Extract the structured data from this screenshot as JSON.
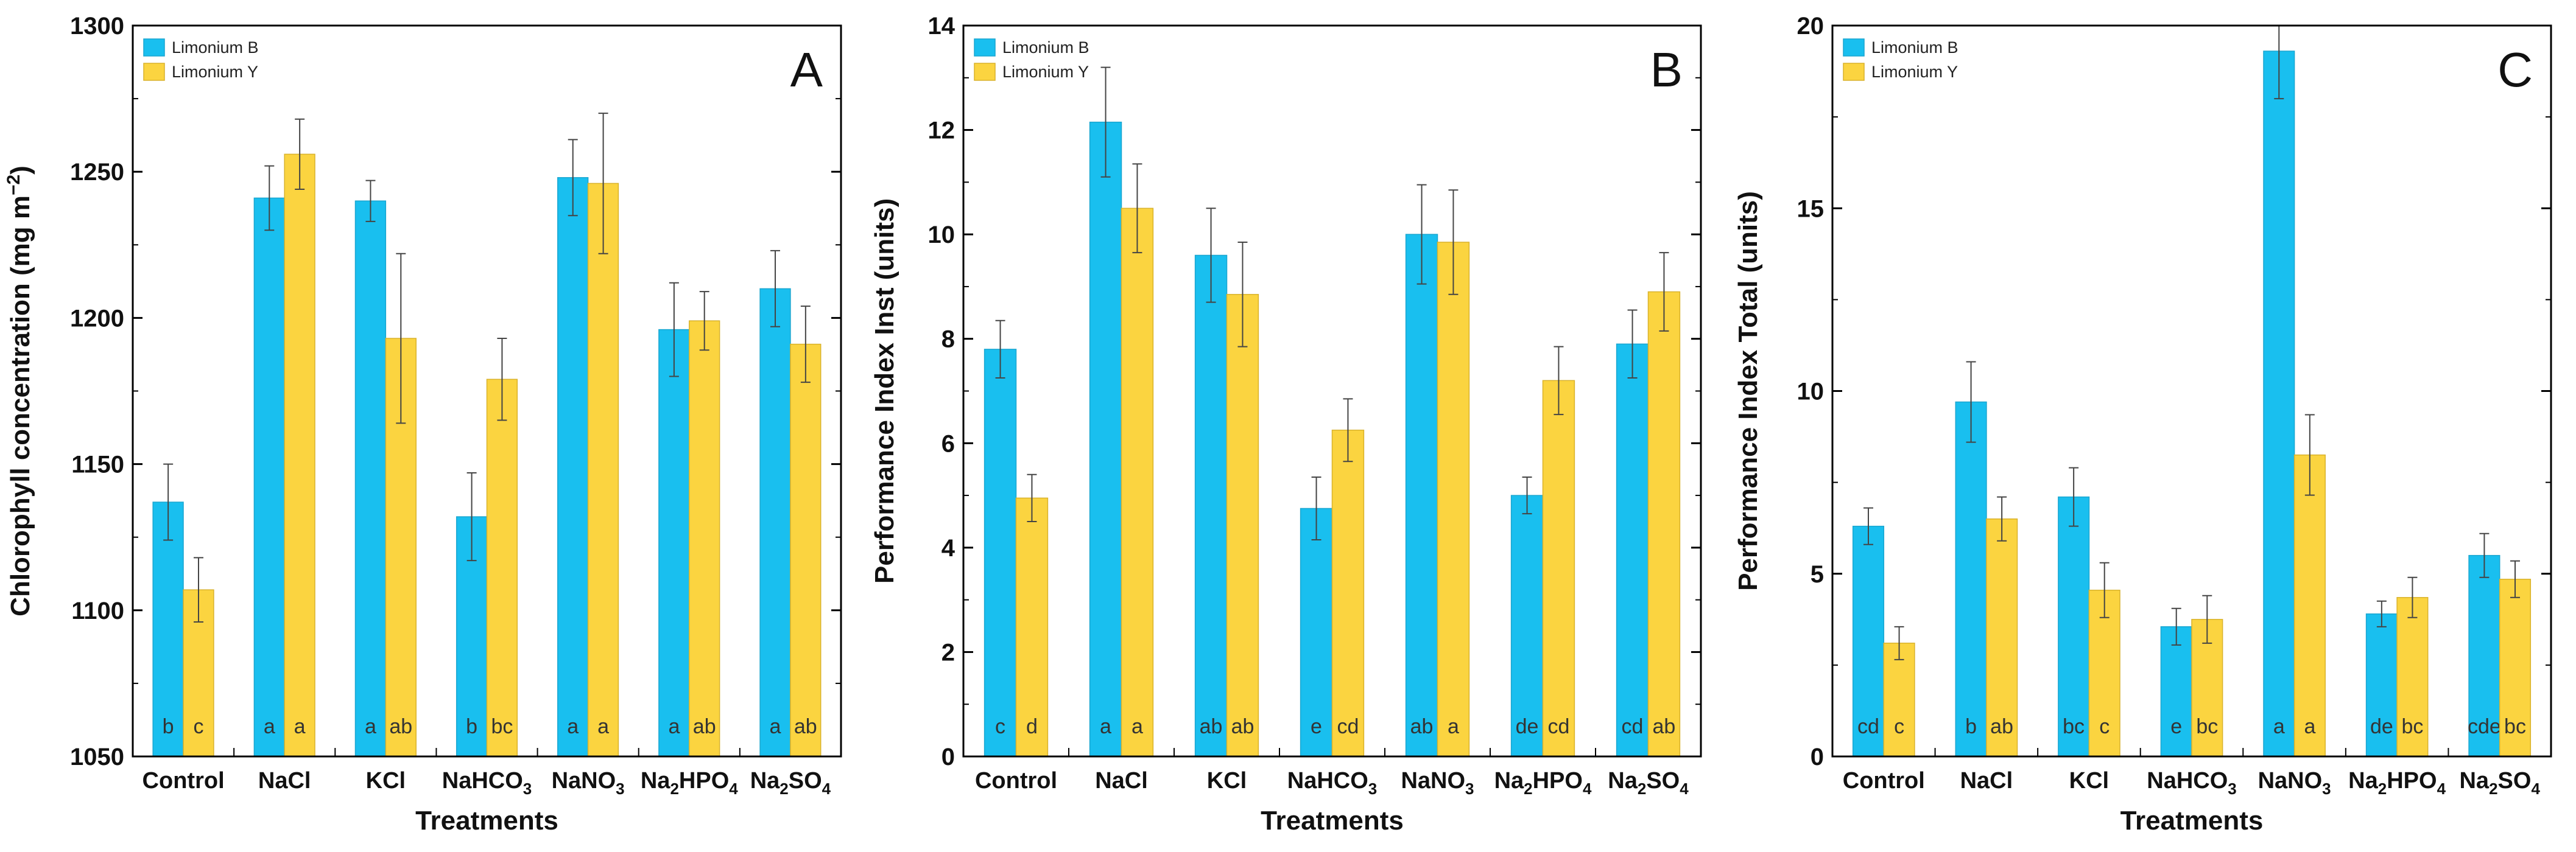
{
  "colors": {
    "series_b": "#19BFEF",
    "series_y": "#FBD440",
    "frame": "#000000",
    "error": "#444444"
  },
  "chart_data": [
    {
      "type": "bar",
      "panel_label": "A",
      "title": "",
      "categories": [
        "Control",
        "NaCl",
        "KCl",
        "NaHCO3",
        "NaNO3",
        "Na2HPO4",
        "Na2SO4"
      ],
      "category_labels": [
        {
          "main": "Control",
          "sub": "",
          "tail": ""
        },
        {
          "main": "NaCl",
          "sub": "",
          "tail": ""
        },
        {
          "main": "KCl",
          "sub": "",
          "tail": ""
        },
        {
          "main": "NaHCO",
          "sub": "3",
          "tail": ""
        },
        {
          "main": "NaNO",
          "sub": "3",
          "tail": ""
        },
        {
          "main": "Na",
          "sub": "2",
          "tail": "HPO",
          "sub2": "4"
        },
        {
          "main": "Na",
          "sub": "2",
          "tail": "SO",
          "sub2": "4"
        }
      ],
      "xlabel": "Treatments",
      "ylabel": "Chlorophyll concentration (mg m",
      "ylabel_sup": "−2",
      "ylabel_close": ")",
      "ylim": [
        1050,
        1300
      ],
      "yticks": [
        1050,
        1100,
        1150,
        1200,
        1250,
        1300
      ],
      "legend": [
        "Limonium B",
        "Limonium Y"
      ],
      "legend_position": "top-left",
      "series": [
        {
          "name": "Limonium B",
          "values": [
            1137,
            1241,
            1240,
            1132,
            1248,
            1196,
            1210
          ],
          "errors": [
            13,
            11,
            7,
            15,
            13,
            16,
            13
          ],
          "letters": [
            "b",
            "a",
            "a",
            "b",
            "a",
            "a",
            "a"
          ]
        },
        {
          "name": "Limonium Y",
          "values": [
            1107,
            1256,
            1193,
            1179,
            1246,
            1199,
            1191
          ],
          "errors": [
            11,
            12,
            29,
            14,
            24,
            10,
            13
          ],
          "letters": [
            "c",
            "a",
            "ab",
            "bc",
            "a",
            "ab",
            "ab"
          ]
        }
      ]
    },
    {
      "type": "bar",
      "panel_label": "B",
      "title": "",
      "categories": [
        "Control",
        "NaCl",
        "KCl",
        "NaHCO3",
        "NaNO3",
        "Na2HPO4",
        "Na2SO4"
      ],
      "category_labels": [
        {
          "main": "Control",
          "sub": "",
          "tail": ""
        },
        {
          "main": "NaCl",
          "sub": "",
          "tail": ""
        },
        {
          "main": "KCl",
          "sub": "",
          "tail": ""
        },
        {
          "main": "NaHCO",
          "sub": "3",
          "tail": ""
        },
        {
          "main": "NaNO",
          "sub": "3",
          "tail": ""
        },
        {
          "main": "Na",
          "sub": "2",
          "tail": "HPO",
          "sub2": "4"
        },
        {
          "main": "Na",
          "sub": "2",
          "tail": "SO",
          "sub2": "4"
        }
      ],
      "xlabel": "Treatments",
      "ylabel": "Performance Index Inst (units)",
      "ylabel_sup": "",
      "ylabel_close": "",
      "ylim": [
        0,
        14
      ],
      "yticks": [
        0,
        2,
        4,
        6,
        8,
        10,
        12,
        14
      ],
      "legend": [
        "Limonium B",
        "Limonium Y"
      ],
      "legend_position": "top-left",
      "series": [
        {
          "name": "Limonium B",
          "values": [
            7.8,
            12.15,
            9.6,
            4.75,
            10.0,
            5.0,
            7.9
          ],
          "errors": [
            0.55,
            1.05,
            0.9,
            0.6,
            0.95,
            0.35,
            0.65
          ],
          "letters": [
            "c",
            "a",
            "ab",
            "e",
            "ab",
            "de",
            "cd"
          ]
        },
        {
          "name": "Limonium Y",
          "values": [
            4.95,
            10.5,
            8.85,
            6.25,
            9.85,
            7.2,
            8.9
          ],
          "errors": [
            0.45,
            0.85,
            1.0,
            0.6,
            1.0,
            0.65,
            0.75
          ],
          "letters": [
            "d",
            "a",
            "ab",
            "cd",
            "a",
            "cd",
            "ab"
          ]
        }
      ]
    },
    {
      "type": "bar",
      "panel_label": "C",
      "title": "",
      "categories": [
        "Control",
        "NaCl",
        "KCl",
        "NaHCO3",
        "NaNO3",
        "Na2HPO4",
        "Na2SO4"
      ],
      "category_labels": [
        {
          "main": "Control",
          "sub": "",
          "tail": ""
        },
        {
          "main": "NaCl",
          "sub": "",
          "tail": ""
        },
        {
          "main": "KCl",
          "sub": "",
          "tail": ""
        },
        {
          "main": "NaHCO",
          "sub": "3",
          "tail": ""
        },
        {
          "main": "NaNO",
          "sub": "3",
          "tail": ""
        },
        {
          "main": "Na",
          "sub": "2",
          "tail": "HPO",
          "sub2": "4"
        },
        {
          "main": "Na",
          "sub": "2",
          "tail": "SO",
          "sub2": "4"
        }
      ],
      "xlabel": "Treatments",
      "ylabel": "Performance Index Total (units)",
      "ylabel_sup": "",
      "ylabel_close": "",
      "ylim": [
        0,
        20
      ],
      "yticks": [
        0,
        5,
        10,
        15,
        20
      ],
      "legend": [
        "Limonium B",
        "Limonium Y"
      ],
      "legend_position": "top-left",
      "series": [
        {
          "name": "Limonium B",
          "values": [
            6.3,
            9.7,
            7.1,
            3.55,
            19.3,
            3.9,
            5.5
          ],
          "errors": [
            0.5,
            1.1,
            0.8,
            0.5,
            1.3,
            0.35,
            0.6
          ],
          "letters": [
            "cd",
            "b",
            "bc",
            "e",
            "a",
            "de",
            "cde"
          ]
        },
        {
          "name": "Limonium Y",
          "values": [
            3.1,
            6.5,
            4.55,
            3.75,
            8.25,
            4.35,
            4.85
          ],
          "errors": [
            0.45,
            0.6,
            0.75,
            0.65,
            1.1,
            0.55,
            0.5
          ],
          "letters": [
            "c",
            "ab",
            "c",
            "bc",
            "a",
            "bc",
            "bc"
          ]
        }
      ]
    }
  ]
}
